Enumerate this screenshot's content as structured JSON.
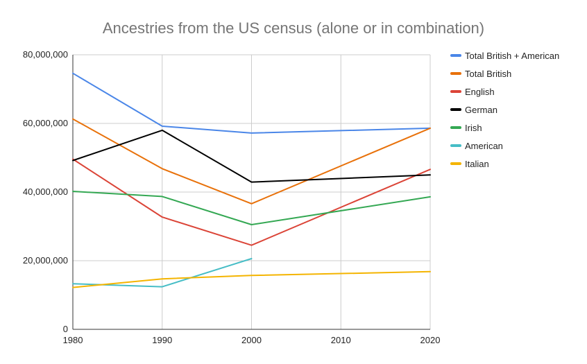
{
  "chart_data": {
    "type": "line",
    "title": "Ancestries from the US census (alone or in combination)",
    "xlabel": "",
    "ylabel": "",
    "x": [
      1980,
      1990,
      2000,
      2010,
      2020
    ],
    "x_tick_labels": [
      "1980",
      "1990",
      "2000",
      "2010",
      "2020"
    ],
    "ylim": [
      0,
      80000000
    ],
    "y_ticks": [
      0,
      20000000,
      40000000,
      60000000,
      80000000
    ],
    "y_tick_labels": [
      "0",
      "20,000,000",
      "40,000,000",
      "60,000,000",
      "80,000,000"
    ],
    "grid": true,
    "legend_position": "right",
    "series": [
      {
        "name": "Total British + American",
        "color": "#4a86e8",
        "values": [
          74600000,
          59200000,
          57200000,
          null,
          58600000
        ]
      },
      {
        "name": "Total British",
        "color": "#e8710a",
        "values": [
          61300000,
          46800000,
          36600000,
          null,
          58600000
        ]
      },
      {
        "name": "English",
        "color": "#db4437",
        "values": [
          49600000,
          32700000,
          24500000,
          null,
          46600000
        ]
      },
      {
        "name": "German",
        "color": "#000000",
        "values": [
          49200000,
          58000000,
          42900000,
          null,
          45000000
        ]
      },
      {
        "name": "Irish",
        "color": "#34a853",
        "values": [
          40200000,
          38700000,
          30500000,
          null,
          38600000
        ]
      },
      {
        "name": "American",
        "color": "#46bdc6",
        "values": [
          13300000,
          12400000,
          20600000,
          null,
          null
        ]
      },
      {
        "name": "Italian",
        "color": "#f4b400",
        "values": [
          12200000,
          14700000,
          15700000,
          null,
          16800000
        ]
      }
    ]
  }
}
